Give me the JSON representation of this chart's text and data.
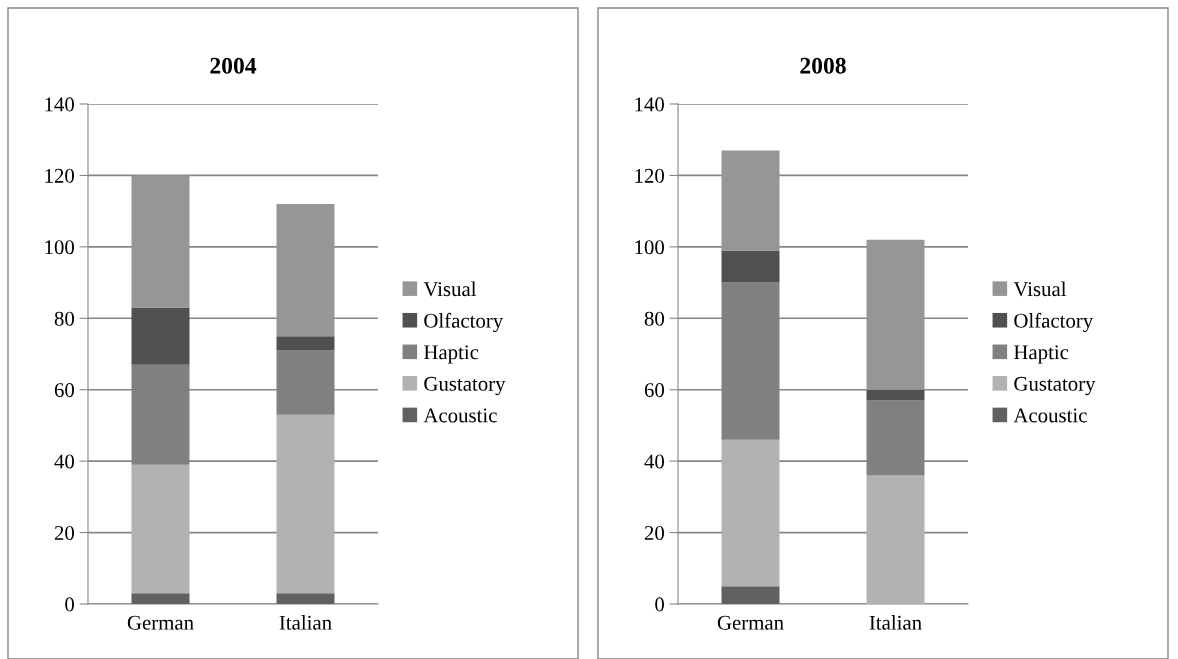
{
  "chart_data": [
    {
      "type": "bar",
      "title": "2004",
      "stacked": true,
      "categories": [
        "German",
        "Italian"
      ],
      "ylim": [
        0,
        140
      ],
      "yticks": [
        0,
        20,
        40,
        60,
        80,
        100,
        120,
        140
      ],
      "grid": "y",
      "legend": "right",
      "series": [
        {
          "name": "Acoustic",
          "color": "#606060",
          "values": [
            3,
            3
          ]
        },
        {
          "name": "Gustatory",
          "color": "#b2b2b2",
          "values": [
            36,
            50
          ]
        },
        {
          "name": "Haptic",
          "color": "#808080",
          "values": [
            28,
            18
          ]
        },
        {
          "name": "Olfactory",
          "color": "#505050",
          "values": [
            16,
            4
          ]
        },
        {
          "name": "Visual",
          "color": "#969696",
          "values": [
            37,
            37
          ]
        }
      ]
    },
    {
      "type": "bar",
      "title": "2008",
      "stacked": true,
      "categories": [
        "German",
        "Italian"
      ],
      "ylim": [
        0,
        140
      ],
      "yticks": [
        0,
        20,
        40,
        60,
        80,
        100,
        120,
        140
      ],
      "grid": "y",
      "legend": "right",
      "series": [
        {
          "name": "Acoustic",
          "color": "#606060",
          "values": [
            5,
            0
          ]
        },
        {
          "name": "Gustatory",
          "color": "#b2b2b2",
          "values": [
            41,
            36
          ]
        },
        {
          "name": "Haptic",
          "color": "#808080",
          "values": [
            44,
            21
          ]
        },
        {
          "name": "Olfactory",
          "color": "#505050",
          "values": [
            9,
            3
          ]
        },
        {
          "name": "Visual",
          "color": "#969696",
          "values": [
            28,
            42
          ]
        }
      ]
    }
  ]
}
